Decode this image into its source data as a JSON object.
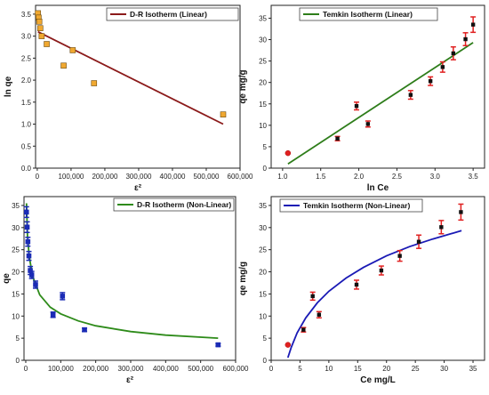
{
  "chart_data": [
    {
      "type": "scatter",
      "xlabel": "ε²",
      "ylabel": "ln qe",
      "xlim": [
        -5000,
        600000
      ],
      "ylim": [
        0.0,
        3.7
      ],
      "xticks": [
        0,
        100000,
        200000,
        300000,
        400000,
        500000,
        600000
      ],
      "xtick_labels": [
        "0",
        "100,000",
        "200,000",
        "300,000",
        "400,000",
        "500,000",
        "600,000"
      ],
      "yticks": [
        0.0,
        0.5,
        1.0,
        1.5,
        2.0,
        2.5,
        3.0,
        3.5
      ],
      "ytick_labels": [
        "0.0",
        "0.5",
        "1.0",
        "1.5",
        "2.0",
        "2.5",
        "3.0",
        "3.5"
      ],
      "legend": "D-R Isotherm (Linear)",
      "legend_position": "top-center",
      "marker_color": "#f0a830",
      "line_color": "#8b1a1a",
      "series": [
        {
          "kind": "points",
          "x": [
            2000,
            4000,
            6000,
            9000,
            13000,
            28000,
            78000,
            105000,
            168000,
            550000
          ],
          "y": [
            3.52,
            3.42,
            3.33,
            3.18,
            3.0,
            2.82,
            2.33,
            2.68,
            1.93,
            1.22
          ]
        },
        {
          "kind": "fit-line",
          "x": [
            2000,
            550000
          ],
          "y": [
            3.1,
            1.0
          ]
        }
      ]
    },
    {
      "type": "scatter",
      "xlabel": "ln Ce",
      "ylabel": "qe mg/g",
      "xlim": [
        0.85,
        3.65
      ],
      "ylim": [
        0,
        38
      ],
      "xticks": [
        1.0,
        1.5,
        2.0,
        2.5,
        3.0,
        3.5
      ],
      "xtick_labels": [
        "1.0",
        "1.5",
        "2.0",
        "2.5",
        "3.0",
        "3.5"
      ],
      "yticks": [
        0,
        5,
        10,
        15,
        20,
        25,
        30,
        35
      ],
      "ytick_labels": [
        "0",
        "5",
        "10",
        "15",
        "20",
        "25",
        "30",
        "35"
      ],
      "legend": "Temkin Isotherm (Linear)",
      "legend_position": "top-center",
      "marker_color": "#111111",
      "errorbar_color": "#e02020",
      "line_color": "#2e7d1a",
      "series": [
        {
          "kind": "points",
          "x": [
            1.07,
            1.72,
            1.97,
            2.12,
            2.68,
            2.94,
            3.1,
            3.24,
            3.4,
            3.5
          ],
          "y": [
            3.5,
            6.9,
            14.5,
            10.3,
            17.1,
            20.3,
            23.6,
            26.8,
            30.1,
            33.5
          ],
          "err": [
            0,
            0.5,
            0.9,
            0.7,
            1.0,
            1.0,
            1.2,
            1.5,
            1.5,
            1.8
          ]
        },
        {
          "kind": "fit-line",
          "x": [
            1.07,
            3.5
          ],
          "y": [
            1.0,
            29.3
          ]
        }
      ]
    },
    {
      "type": "scatter",
      "xlabel": "ε²",
      "ylabel": "qe",
      "xlim": [
        -5000,
        600000
      ],
      "ylim": [
        0,
        37
      ],
      "xticks": [
        0,
        100000,
        200000,
        300000,
        400000,
        500000,
        600000
      ],
      "xtick_labels": [
        "0",
        "100,000",
        "200,000",
        "300,000",
        "400,000",
        "500,000",
        "600,000"
      ],
      "yticks": [
        0,
        5,
        10,
        15,
        20,
        25,
        30,
        35
      ],
      "ytick_labels": [
        "0",
        "5",
        "10",
        "15",
        "20",
        "25",
        "30",
        "35"
      ],
      "legend": "D-R Isotherm (Non-Linear)",
      "legend_position": "top-right",
      "marker_color": "#1a2bb5",
      "line_color": "#2e8b1a",
      "series": [
        {
          "kind": "points",
          "x": [
            2000,
            4000,
            6000,
            9000,
            13000,
            17000,
            28000,
            78000,
            105000,
            168000,
            550000
          ],
          "y": [
            33.5,
            30.1,
            26.8,
            23.6,
            20.3,
            19.3,
            17.1,
            10.3,
            14.5,
            6.9,
            3.5
          ],
          "err": [
            1.2,
            1.2,
            1.0,
            1.0,
            0.9,
            0.8,
            0.8,
            0.6,
            0.8,
            0.4,
            0.3
          ]
        },
        {
          "kind": "fit-curve",
          "x": [
            2000,
            5000,
            10000,
            20000,
            40000,
            70000,
            100000,
            150000,
            200000,
            300000,
            400000,
            550000
          ],
          "y": [
            35.5,
            28.2,
            23.4,
            18.9,
            14.8,
            12.0,
            10.5,
            8.9,
            7.8,
            6.5,
            5.7,
            5.0
          ]
        }
      ]
    },
    {
      "type": "scatter",
      "xlabel": "Ce mg/L",
      "ylabel": "qe mg/g",
      "xlim": [
        0,
        37
      ],
      "ylim": [
        0,
        37
      ],
      "xticks": [
        0,
        5,
        10,
        15,
        20,
        25,
        30,
        35
      ],
      "xtick_labels": [
        "0",
        "5",
        "10",
        "15",
        "20",
        "25",
        "30",
        "35"
      ],
      "yticks": [
        0,
        5,
        10,
        15,
        20,
        25,
        30,
        35
      ],
      "ytick_labels": [
        "0",
        "5",
        "10",
        "15",
        "20",
        "25",
        "30",
        "35"
      ],
      "legend": "Temkin Isotherm (Non-Linear)",
      "legend_position": "top-left",
      "marker_color": "#111111",
      "errorbar_color": "#e02020",
      "line_color": "#1a1ab5",
      "series": [
        {
          "kind": "points",
          "x": [
            2.9,
            5.6,
            7.2,
            8.3,
            14.8,
            19.1,
            22.3,
            25.6,
            29.5,
            32.9
          ],
          "y": [
            3.5,
            6.9,
            14.5,
            10.3,
            17.1,
            20.3,
            23.6,
            26.8,
            30.1,
            33.5
          ],
          "err": [
            0,
            0.5,
            0.9,
            0.7,
            1.0,
            1.0,
            1.2,
            1.5,
            1.5,
            1.8
          ]
        },
        {
          "kind": "fit-curve",
          "x": [
            2.9,
            3.5,
            4.5,
            6,
            8,
            10,
            13,
            16,
            20,
            24,
            28,
            33
          ],
          "y": [
            0.6,
            3.0,
            6.2,
            9.6,
            13.0,
            15.6,
            18.6,
            21.0,
            23.6,
            25.7,
            27.4,
            29.3
          ]
        }
      ]
    }
  ]
}
